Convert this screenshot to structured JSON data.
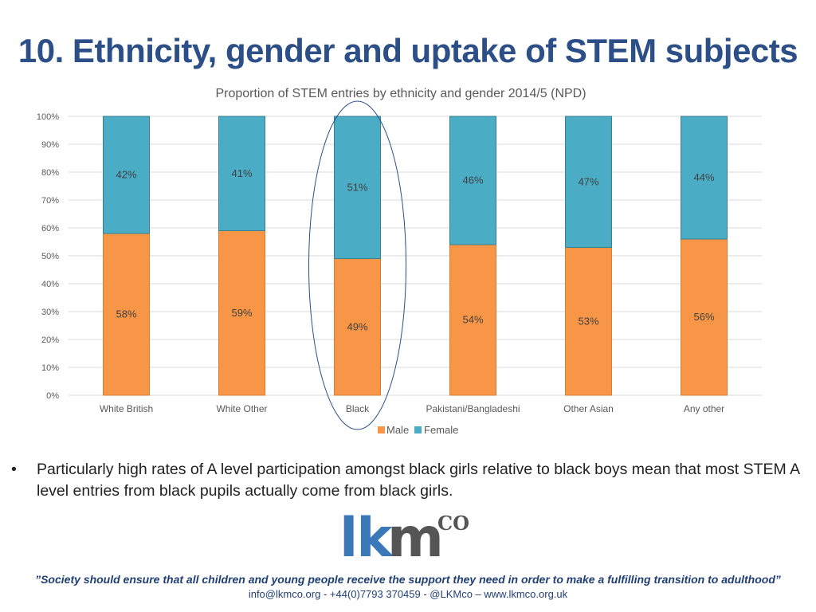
{
  "slide": {
    "title": "10. Ethnicity, gender and uptake of STEM subjects",
    "bullet": "Particularly high rates of A level participation amongst black girls relative to black boys mean that most STEM A level entries from black pupils actually come from black girls.",
    "bullet_marker": "•"
  },
  "logo": {
    "lk": "lk",
    "m": "m",
    "co": "CO"
  },
  "footer": {
    "quote": "”Society should ensure that all children and young people receive the support they need in order to make a fulfilling transition to adulthood”",
    "contact": "info@lkmco.org - +44(0)7793 370459 - @LKMco – www.lkmco.org.uk"
  },
  "colors": {
    "male": "#f79646",
    "female": "#4bacc6",
    "title": "#2b4f86",
    "grid": "#d9d9d9"
  },
  "chart_data": {
    "type": "bar",
    "stacked": true,
    "title": "Proportion of STEM entries by ethnicity and gender 2014/5 (NPD)",
    "categories": [
      "White British",
      "White Other",
      "Black",
      "Pakistani/Bangladeshi",
      "Other Asian",
      "Any other"
    ],
    "series": [
      {
        "name": "Male",
        "values": [
          58,
          59,
          49,
          54,
          53,
          56
        ],
        "labels": [
          "58%",
          "59%",
          "49%",
          "54%",
          "53%",
          "56%"
        ]
      },
      {
        "name": "Female",
        "values": [
          42,
          41,
          51,
          46,
          47,
          44
        ],
        "labels": [
          "42%",
          "41%",
          "51%",
          "46%",
          "47%",
          "44%"
        ]
      }
    ],
    "ylim": [
      0,
      100
    ],
    "yticks": [
      "0%",
      "10%",
      "20%",
      "30%",
      "40%",
      "50%",
      "60%",
      "70%",
      "80%",
      "90%",
      "100%"
    ],
    "legend_position": "bottom",
    "highlight_category": "Black",
    "grid": true
  }
}
